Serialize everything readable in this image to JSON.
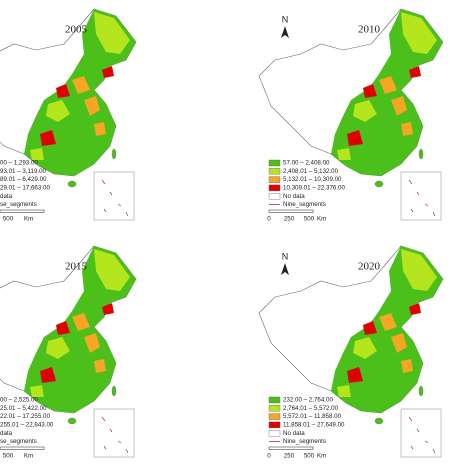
{
  "panels": [
    {
      "year": "2005",
      "north": null,
      "legend": [
        "00 – 1,293.00",
        "93.01 – 3,119.00",
        "89.01 – 6,429.00",
        "29.01 – 17,663.00",
        "data",
        "se_segments"
      ],
      "scale_labels": [
        "500"
      ],
      "unit": "Km"
    },
    {
      "year": "2010",
      "north": "N",
      "legend": [
        "57.00 – 2,408.00",
        "2,408.01 – 5,132.00",
        "5,132.01 – 10,309.00",
        "10,309.01 – 22,376.00",
        "No data",
        "Nine_segments"
      ],
      "scale_labels": [
        "0",
        "250",
        "500"
      ],
      "unit": "Km"
    },
    {
      "year": "2015",
      "north": null,
      "legend": [
        "00 – 2,525.00",
        "25.01 – 5,422.00",
        "22.01 – 17,255.00",
        "255.01 – 22,843.00",
        "data",
        "se_segments"
      ],
      "scale_labels": [
        "500"
      ],
      "unit": "Km"
    },
    {
      "year": "2020",
      "north": "N",
      "legend": [
        "232.00 – 2,764.00",
        "2,764.01 – 5,572.00",
        "5,572.01 – 11,858.00",
        "11,858.01 – 27,649.00",
        "No data",
        "Nine_segments"
      ],
      "scale_labels": [
        "0",
        "250",
        "500"
      ],
      "unit": "Km"
    }
  ]
}
